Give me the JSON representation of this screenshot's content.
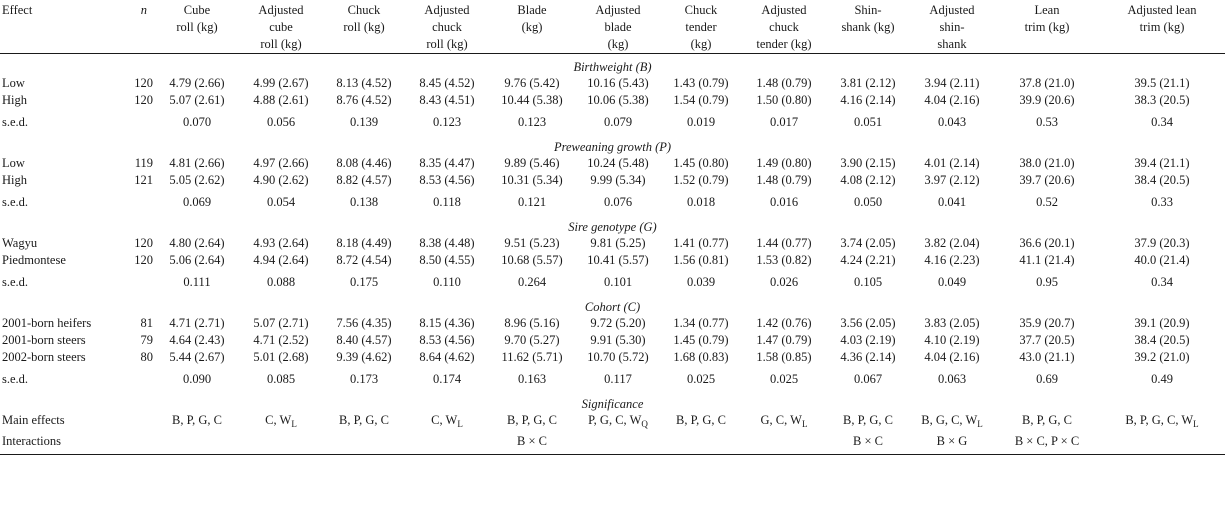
{
  "headers": [
    {
      "id": "effect",
      "lines": [
        "Effect"
      ]
    },
    {
      "id": "n",
      "lines": [
        "n"
      ]
    },
    {
      "id": "cube-roll",
      "lines": [
        "Cube",
        "roll (kg)"
      ]
    },
    {
      "id": "adj-cube-roll",
      "lines": [
        "Adjusted",
        "cube",
        "roll (kg)"
      ]
    },
    {
      "id": "chuck-roll",
      "lines": [
        "Chuck",
        "roll (kg)"
      ]
    },
    {
      "id": "adj-chuck-roll",
      "lines": [
        "Adjusted",
        "chuck",
        "roll (kg)"
      ]
    },
    {
      "id": "blade",
      "lines": [
        "Blade",
        "(kg)"
      ]
    },
    {
      "id": "adj-blade",
      "lines": [
        "Adjusted",
        "blade",
        "(kg)"
      ]
    },
    {
      "id": "chuck-tender",
      "lines": [
        "Chuck",
        "tender",
        "(kg)"
      ]
    },
    {
      "id": "adj-chuck-tender",
      "lines": [
        "Adjusted",
        "chuck",
        "tender (kg)"
      ]
    },
    {
      "id": "shin-shank",
      "lines": [
        "Shin-",
        "shank (kg)"
      ]
    },
    {
      "id": "adj-shin-shank",
      "lines": [
        "Adjusted",
        "shin-",
        "shank"
      ]
    },
    {
      "id": "lean-trim",
      "lines": [
        "Lean",
        "trim (kg)"
      ]
    },
    {
      "id": "adj-lean-trim",
      "lines": [
        "Adjusted lean",
        "trim (kg)"
      ]
    }
  ],
  "sections": [
    {
      "id": "birthweight",
      "title": "Birthweight (B)",
      "rows": [
        {
          "label": "Low",
          "n": "120",
          "values": [
            "4.79 (2.66)",
            "4.99 (2.67)",
            "8.13 (4.52)",
            "8.45 (4.52)",
            "9.76 (5.42)",
            "10.16 (5.43)",
            "1.43 (0.79)",
            "1.48 (0.79)",
            "3.81 (2.12)",
            "3.94 (2.11)",
            "37.8 (21.0)",
            "39.5 (21.1)"
          ]
        },
        {
          "label": "High",
          "n": "120",
          "values": [
            "5.07 (2.61)",
            "4.88 (2.61)",
            "8.76 (4.52)",
            "8.43 (4.51)",
            "10.44 (5.38)",
            "10.06 (5.38)",
            "1.54 (0.79)",
            "1.50 (0.80)",
            "4.16 (2.14)",
            "4.04 (2.16)",
            "39.9 (20.6)",
            "38.3 (20.5)"
          ]
        }
      ],
      "sed": {
        "label": "s.e.d.",
        "values": [
          "0.070",
          "0.056",
          "0.139",
          "0.123",
          "0.123",
          "0.079",
          "0.019",
          "0.017",
          "0.051",
          "0.043",
          "0.53",
          "0.34"
        ]
      }
    },
    {
      "id": "preweaning",
      "title": "Preweaning growth (P)",
      "rows": [
        {
          "label": "Low",
          "n": "119",
          "values": [
            "4.81 (2.66)",
            "4.97 (2.66)",
            "8.08 (4.46)",
            "8.35 (4.47)",
            "9.89 (5.46)",
            "10.24 (5.48)",
            "1.45 (0.80)",
            "1.49 (0.80)",
            "3.90 (2.15)",
            "4.01 (2.14)",
            "38.0 (21.0)",
            "39.4 (21.1)"
          ]
        },
        {
          "label": "High",
          "n": "121",
          "values": [
            "5.05 (2.62)",
            "4.90 (2.62)",
            "8.82 (4.57)",
            "8.53 (4.56)",
            "10.31 (5.34)",
            "9.99 (5.34)",
            "1.52 (0.79)",
            "1.48 (0.79)",
            "4.08 (2.12)",
            "3.97 (2.12)",
            "39.7 (20.6)",
            "38.4 (20.5)"
          ]
        }
      ],
      "sed": {
        "label": "s.e.d.",
        "values": [
          "0.069",
          "0.054",
          "0.138",
          "0.118",
          "0.121",
          "0.076",
          "0.018",
          "0.016",
          "0.050",
          "0.041",
          "0.52",
          "0.33"
        ]
      }
    },
    {
      "id": "sire",
      "title": "Sire genotype (G)",
      "rows": [
        {
          "label": "Wagyu",
          "n": "120",
          "values": [
            "4.80 (2.64)",
            "4.93 (2.64)",
            "8.18 (4.49)",
            "8.38 (4.48)",
            "9.51 (5.23)",
            "9.81 (5.25)",
            "1.41 (0.77)",
            "1.44 (0.77)",
            "3.74 (2.05)",
            "3.82 (2.04)",
            "36.6 (20.1)",
            "37.9 (20.3)"
          ]
        },
        {
          "label": "Piedmontese",
          "n": "120",
          "values": [
            "5.06 (2.64)",
            "4.94 (2.64)",
            "8.72 (4.54)",
            "8.50 (4.55)",
            "10.68 (5.57)",
            "10.41 (5.57)",
            "1.56 (0.81)",
            "1.53 (0.82)",
            "4.24 (2.21)",
            "4.16 (2.23)",
            "41.1 (21.4)",
            "40.0 (21.4)"
          ]
        }
      ],
      "sed": {
        "label": "s.e.d.",
        "values": [
          "0.111",
          "0.088",
          "0.175",
          "0.110",
          "0.264",
          "0.101",
          "0.039",
          "0.026",
          "0.105",
          "0.049",
          "0.95",
          "0.34"
        ]
      }
    },
    {
      "id": "cohort",
      "title": "Cohort (C)",
      "rows": [
        {
          "label": "2001-born heifers",
          "n": "81",
          "values": [
            "4.71 (2.71)",
            "5.07 (2.71)",
            "7.56 (4.35)",
            "8.15 (4.36)",
            "8.96 (5.16)",
            "9.72 (5.20)",
            "1.34 (0.77)",
            "1.42 (0.76)",
            "3.56 (2.05)",
            "3.83 (2.05)",
            "35.9 (20.7)",
            "39.1 (20.9)"
          ]
        },
        {
          "label": "2001-born steers",
          "n": "79",
          "values": [
            "4.64 (2.43)",
            "4.71 (2.52)",
            "8.40 (4.57)",
            "8.53 (4.56)",
            "9.70 (5.27)",
            "9.91 (5.30)",
            "1.45 (0.79)",
            "1.47 (0.79)",
            "4.03 (2.19)",
            "4.10 (2.19)",
            "37.7 (20.5)",
            "38.4 (20.5)"
          ]
        },
        {
          "label": "2002-born steers",
          "n": "80",
          "values": [
            "5.44 (2.67)",
            "5.01 (2.68)",
            "9.39 (4.62)",
            "8.64 (4.62)",
            "11.62 (5.71)",
            "10.70 (5.72)",
            "1.68 (0.83)",
            "1.58 (0.85)",
            "4.36 (2.14)",
            "4.04 (2.16)",
            "43.0 (21.1)",
            "39.2 (21.0)"
          ]
        }
      ],
      "sed": {
        "label": "s.e.d.",
        "values": [
          "0.090",
          "0.085",
          "0.173",
          "0.174",
          "0.163",
          "0.117",
          "0.025",
          "0.025",
          "0.067",
          "0.063",
          "0.69",
          "0.49"
        ]
      }
    }
  ],
  "significance": {
    "title": "Significance",
    "main_label": "Main effects",
    "interactions_label": "Interactions",
    "main": [
      {
        "text": "B, P, G, C",
        "sub": ""
      },
      {
        "text": "C, W",
        "sub": "L"
      },
      {
        "text": "B, P, G, C",
        "sub": ""
      },
      {
        "text": "C, W",
        "sub": "L"
      },
      {
        "text": "B, P, G, C",
        "sub": ""
      },
      {
        "text": "P, G, C, W",
        "sub": "Q"
      },
      {
        "text": "B, P, G, C",
        "sub": ""
      },
      {
        "text": "G, C, W",
        "sub": "L"
      },
      {
        "text": "B, P, G, C",
        "sub": ""
      },
      {
        "text": "B, G, C, W",
        "sub": "L"
      },
      {
        "text": "B, P, G, C",
        "sub": ""
      },
      {
        "text": "B, P, G, C, W",
        "sub": "L"
      }
    ],
    "interactions": [
      "",
      "",
      "",
      "",
      "B × C",
      "",
      "",
      "",
      "B × C",
      "B × G",
      "B × C, P × C",
      ""
    ]
  }
}
